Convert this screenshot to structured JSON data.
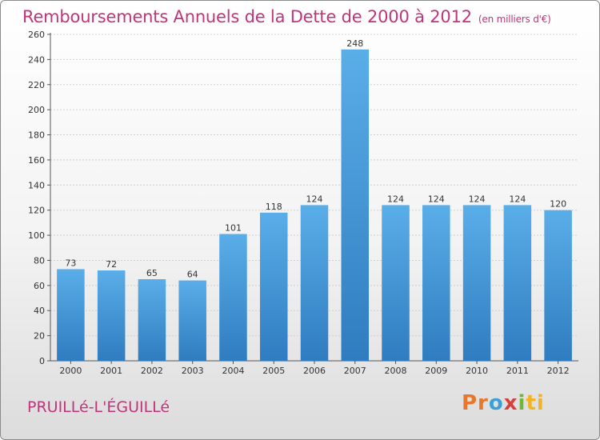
{
  "header": {
    "title": "Remboursements Annuels de la Dette de 2000 à 2012",
    "subtitle": "(en milliers d'€)"
  },
  "footer": {
    "commune": "PRUILLé-L'ÉGUILLé",
    "logo": [
      "Pr",
      "o",
      "x",
      "i",
      "ti"
    ]
  },
  "colors": {
    "bar_top": "#5aaee8",
    "bar_bottom": "#2f7cc0",
    "title": "#c0357a"
  },
  "chart_data": {
    "type": "bar",
    "title": "Remboursements Annuels de la Dette de 2000 à 2012",
    "subtitle": "(en milliers d'€)",
    "categories": [
      "2000",
      "2001",
      "2002",
      "2003",
      "2004",
      "2005",
      "2006",
      "2007",
      "2008",
      "2009",
      "2010",
      "2011",
      "2012"
    ],
    "values": [
      73,
      72,
      65,
      64,
      101,
      118,
      124,
      248,
      124,
      124,
      124,
      124,
      120
    ],
    "ylim": [
      0,
      260
    ],
    "yticks": [
      0,
      20,
      40,
      60,
      80,
      100,
      120,
      140,
      160,
      180,
      200,
      220,
      240,
      260
    ],
    "grid": true,
    "xlabel": "",
    "ylabel": ""
  }
}
